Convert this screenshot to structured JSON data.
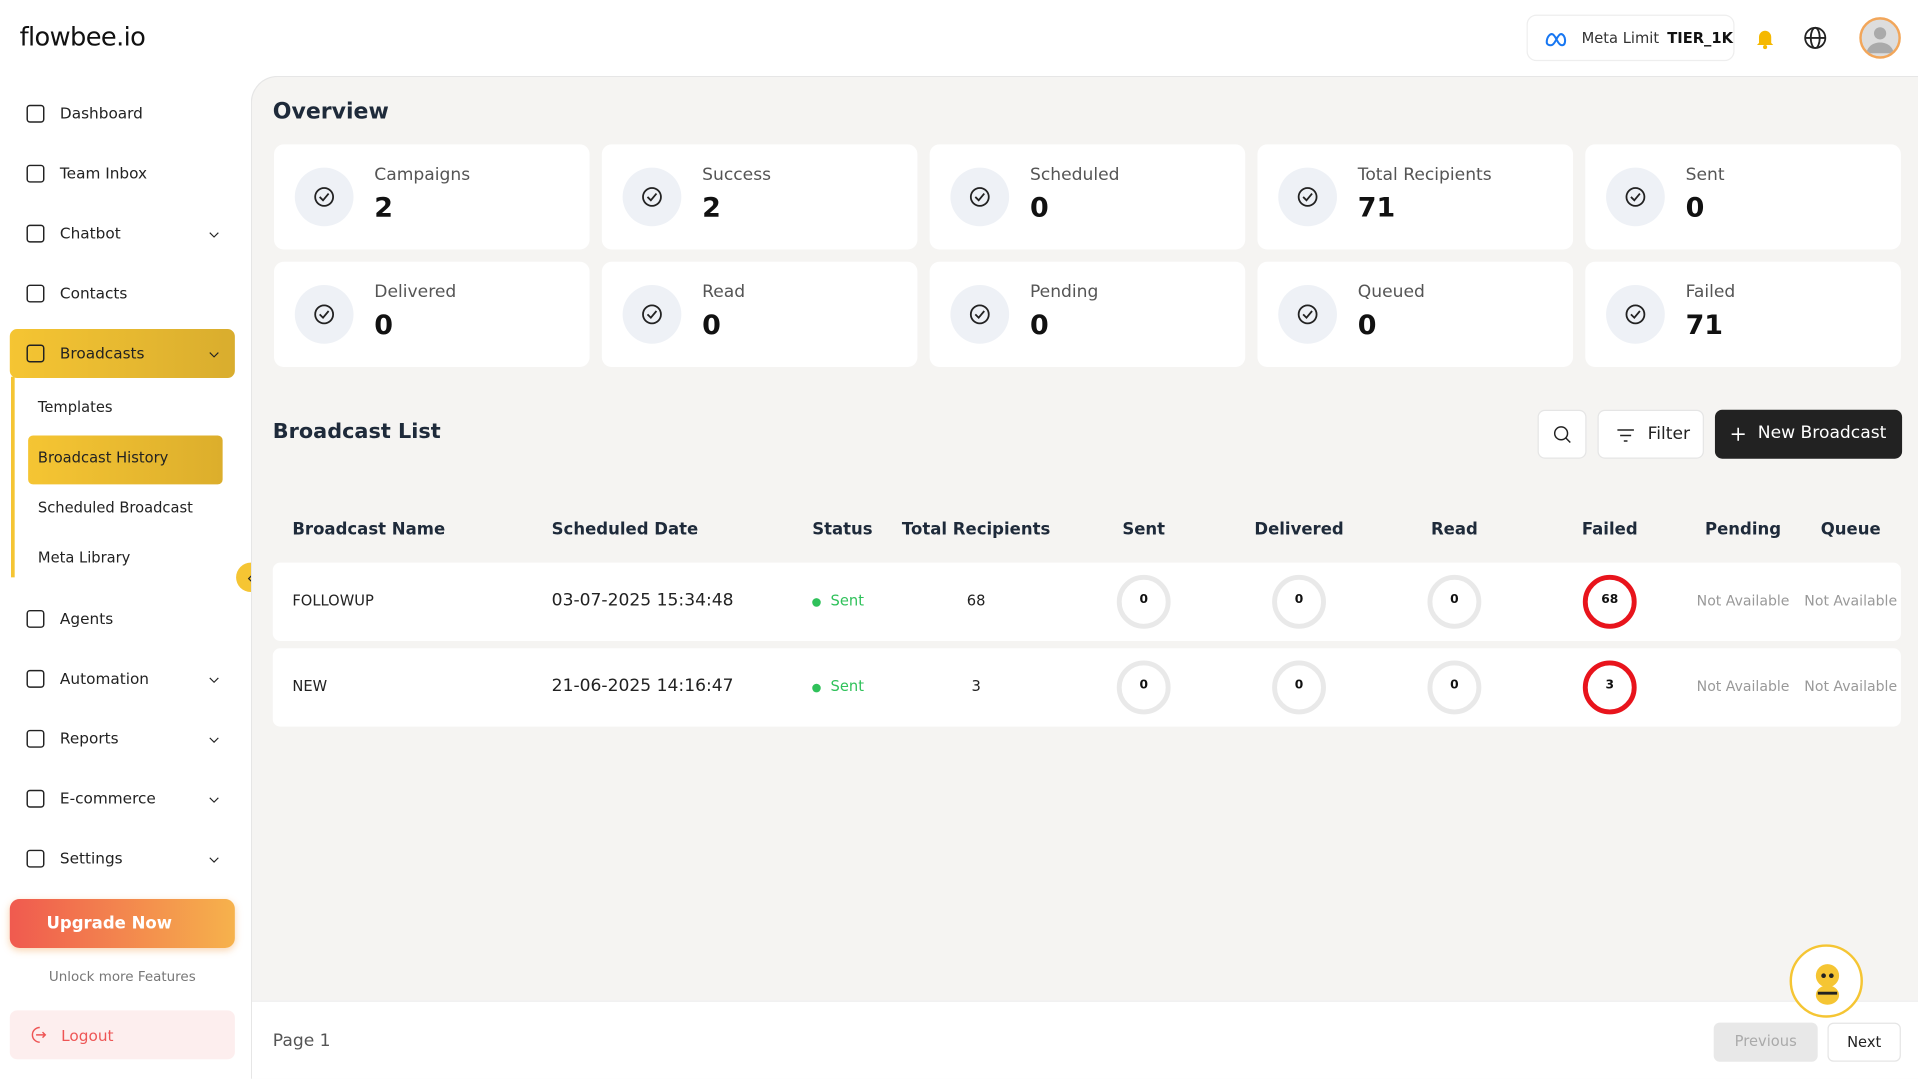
{
  "header": {
    "logo": "flowbee.io",
    "meta_limit_label": "Meta Limit",
    "meta_limit_value": "TIER_1K"
  },
  "sidebar": {
    "items": [
      {
        "label": "Dashboard",
        "expandable": false
      },
      {
        "label": "Team Inbox",
        "expandable": false
      },
      {
        "label": "Chatbot",
        "expandable": true
      },
      {
        "label": "Contacts",
        "expandable": false
      },
      {
        "label": "Broadcasts",
        "expandable": true,
        "active": true,
        "children": [
          "Templates",
          "Broadcast History",
          "Scheduled Broadcast",
          "Meta Library"
        ],
        "active_child": 1
      },
      {
        "label": "Agents",
        "expandable": false
      },
      {
        "label": "Automation",
        "expandable": true
      },
      {
        "label": "Reports",
        "expandable": true
      },
      {
        "label": "E-commerce",
        "expandable": true
      },
      {
        "label": "Settings",
        "expandable": true
      }
    ],
    "upgrade": "Upgrade Now",
    "upgrade_note": "Unlock more Features",
    "logout": "Logout"
  },
  "overview": {
    "title": "Overview",
    "stats": [
      {
        "label": "Campaigns",
        "value": "2"
      },
      {
        "label": "Success",
        "value": "2"
      },
      {
        "label": "Scheduled",
        "value": "0"
      },
      {
        "label": "Total Recipients",
        "value": "71"
      },
      {
        "label": "Sent",
        "value": "0"
      },
      {
        "label": "Delivered",
        "value": "0"
      },
      {
        "label": "Read",
        "value": "0"
      },
      {
        "label": "Pending",
        "value": "0"
      },
      {
        "label": "Queued",
        "value": "0"
      },
      {
        "label": "Failed",
        "value": "71"
      }
    ]
  },
  "broadcast_list": {
    "title": "Broadcast List",
    "filter": "Filter",
    "new_button": "New Broadcast",
    "table": {
      "columns": [
        "Broadcast Name",
        "Scheduled Date",
        "Status",
        "Total Recipients",
        "Sent",
        "Delivered",
        "Read",
        "Failed",
        "Pending",
        "Queue"
      ],
      "rows": [
        [
          "FOLLOWUP",
          "03-07-2025  15:34:48",
          "Sent",
          "68",
          "0",
          "0",
          "0",
          "68",
          "Not Available",
          "Not Available"
        ],
        [
          "NEW",
          "21-06-2025  14:16:47",
          "Sent",
          "3",
          "0",
          "0",
          "0",
          "3",
          "Not Available",
          "Not Available"
        ]
      ]
    }
  },
  "footer": {
    "page": "Page 1",
    "previous": "Previous",
    "next": "Next"
  }
}
